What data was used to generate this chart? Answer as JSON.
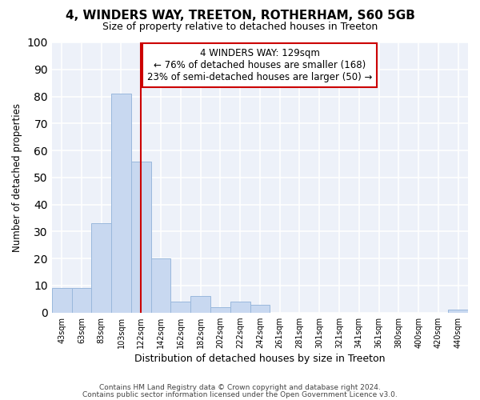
{
  "title": "4, WINDERS WAY, TREETON, ROTHERHAM, S60 5GB",
  "subtitle": "Size of property relative to detached houses in Treeton",
  "xlabel": "Distribution of detached houses by size in Treeton",
  "ylabel": "Number of detached properties",
  "bar_labels": [
    "43sqm",
    "63sqm",
    "83sqm",
    "103sqm",
    "122sqm",
    "142sqm",
    "162sqm",
    "182sqm",
    "202sqm",
    "222sqm",
    "242sqm",
    "261sqm",
    "281sqm",
    "301sqm",
    "321sqm",
    "341sqm",
    "361sqm",
    "380sqm",
    "400sqm",
    "420sqm",
    "440sqm"
  ],
  "bar_values": [
    9,
    9,
    33,
    81,
    56,
    20,
    4,
    6,
    2,
    4,
    3,
    0,
    0,
    0,
    0,
    0,
    0,
    0,
    0,
    0,
    1
  ],
  "bar_color": "#c8d8f0",
  "bar_edge_color": "#9ab8dc",
  "background_color": "#edf1f9",
  "grid_color": "#ffffff",
  "property_line_x": 4,
  "property_line_color": "#cc0000",
  "annotation_text": "4 WINDERS WAY: 129sqm\n← 76% of detached houses are smaller (168)\n23% of semi-detached houses are larger (50) →",
  "annotation_box_color": "#cc0000",
  "ylim": [
    0,
    100
  ],
  "footer_line1": "Contains HM Land Registry data © Crown copyright and database right 2024.",
  "footer_line2": "Contains public sector information licensed under the Open Government Licence v3.0.",
  "fig_bg_color": "#ffffff"
}
